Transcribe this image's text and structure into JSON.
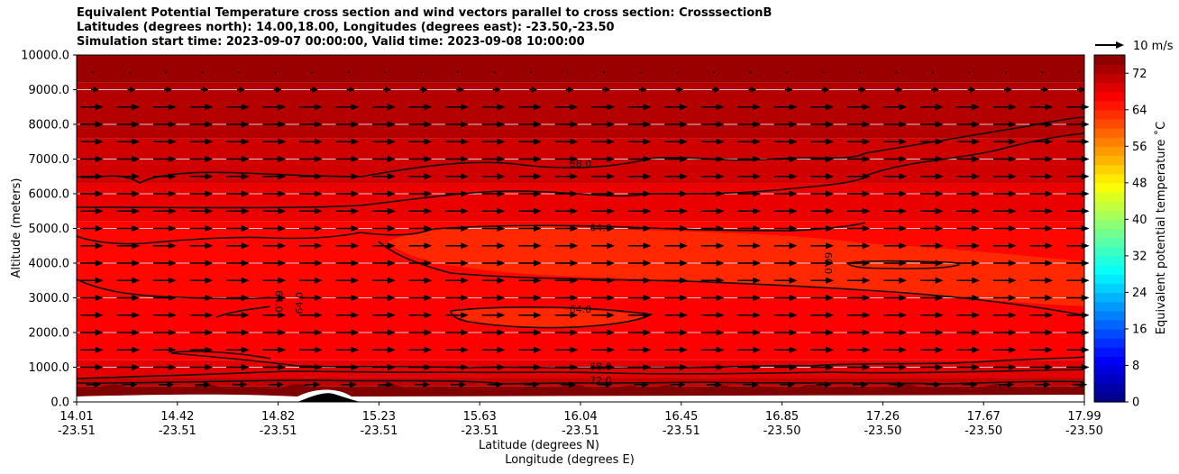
{
  "title": {
    "line1": "Equivalent Potential Temperature cross section and wind vectors parallel to cross section: CrosssectionB",
    "line2": "Latitudes (degrees north): 14.00,18.00, Longitudes (degrees east): -23.50,-23.50",
    "line3": "Simulation start time: 2023-09-07 00:00:00, Valid time: 2023-09-08 10:00:00"
  },
  "chart_data": {
    "type": "contourf",
    "xlabel": "Latitude (degrees N)",
    "xlabel2": "Longitude (degrees E)",
    "ylabel": "Altitude (meters)",
    "ylim": [
      0,
      10000
    ],
    "yticks": [
      "0.0",
      "1000.0",
      "2000.0",
      "3000.0",
      "4000.0",
      "5000.0",
      "6000.0",
      "7000.0",
      "8000.0",
      "9000.0",
      "10000.0"
    ],
    "xticks": [
      {
        "lat": "14.01",
        "lon": "-23.51"
      },
      {
        "lat": "14.42",
        "lon": "-23.51"
      },
      {
        "lat": "14.82",
        "lon": "-23.51"
      },
      {
        "lat": "15.23",
        "lon": "-23.51"
      },
      {
        "lat": "15.63",
        "lon": "-23.51"
      },
      {
        "lat": "16.04",
        "lon": "-23.51"
      },
      {
        "lat": "16.45",
        "lon": "-23.51"
      },
      {
        "lat": "16.85",
        "lon": "-23.50"
      },
      {
        "lat": "17.26",
        "lon": "-23.50"
      },
      {
        "lat": "17.67",
        "lon": "-23.50"
      },
      {
        "lat": "17.99",
        "lon": "-23.50"
      }
    ],
    "colorbar": {
      "label": "Equivalent potential temperature $^\\circ$C",
      "label_display": "Equivalent potential temperature ˚C",
      "range": [
        0,
        76
      ],
      "ticks": [
        "0",
        "8",
        "16",
        "24",
        "32",
        "40",
        "48",
        "56",
        "64",
        "72"
      ]
    },
    "quiver_key": "10 m/s",
    "contour_labels": [
      {
        "text": "68.0",
        "x": 0.5,
        "alt": 6850,
        "rot": 0
      },
      {
        "text": "64.0",
        "x": 0.52,
        "alt": 5000,
        "rot": 0
      },
      {
        "text": "64.0",
        "x": 0.5,
        "alt": 2650,
        "rot": 0
      },
      {
        "text": "68.0",
        "x": 0.52,
        "alt": 1000,
        "rot": 0
      },
      {
        "text": "72.0",
        "x": 0.52,
        "alt": 600,
        "rot": 0
      },
      {
        "text": "64.0",
        "x": 0.2,
        "alt": 2900,
        "rot": 90
      },
      {
        "text": "64.0",
        "x": 0.222,
        "alt": 2850,
        "rot": -90
      },
      {
        "text": "60.0",
        "x": 0.745,
        "alt": 4000,
        "rot": 90
      }
    ]
  }
}
